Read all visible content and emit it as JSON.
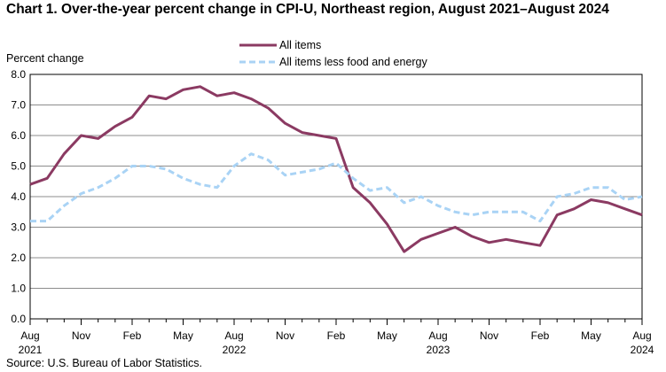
{
  "chart_data": {
    "type": "line",
    "title": "Chart 1. Over-the-year percent change in CPI-U, Northeast region, August 2021–August  2024",
    "ylabel": "Percent change",
    "xlabel": "",
    "ylim": [
      0,
      8
    ],
    "yticks": [
      "0.0",
      "1.0",
      "2.0",
      "3.0",
      "4.0",
      "5.0",
      "6.0",
      "7.0",
      "8.0"
    ],
    "grid": true,
    "legend_position": "top-center",
    "x_tick_labels": [
      {
        "index": 0,
        "month": "Aug",
        "year": "2021"
      },
      {
        "index": 3,
        "month": "Nov",
        "year": ""
      },
      {
        "index": 6,
        "month": "Feb",
        "year": ""
      },
      {
        "index": 9,
        "month": "May",
        "year": ""
      },
      {
        "index": 12,
        "month": "Aug",
        "year": "2022"
      },
      {
        "index": 15,
        "month": "Nov",
        "year": ""
      },
      {
        "index": 18,
        "month": "Feb",
        "year": ""
      },
      {
        "index": 21,
        "month": "May",
        "year": ""
      },
      {
        "index": 24,
        "month": "Aug",
        "year": "2023"
      },
      {
        "index": 27,
        "month": "Nov",
        "year": ""
      },
      {
        "index": 30,
        "month": "Feb",
        "year": ""
      },
      {
        "index": 33,
        "month": "May",
        "year": ""
      },
      {
        "index": 36,
        "month": "Aug",
        "year": "2024"
      }
    ],
    "series": [
      {
        "name": "All items",
        "color": "#8B3A62",
        "style": "solid",
        "values": [
          4.4,
          4.6,
          5.4,
          6.0,
          5.9,
          6.3,
          6.6,
          7.3,
          7.2,
          7.5,
          7.6,
          7.3,
          7.4,
          7.2,
          6.9,
          6.4,
          6.1,
          6.0,
          5.9,
          4.3,
          3.8,
          3.1,
          2.2,
          2.6,
          2.8,
          3.0,
          2.7,
          2.5,
          2.6,
          2.5,
          2.4,
          3.4,
          3.6,
          3.9,
          3.8,
          3.6,
          3.4
        ]
      },
      {
        "name": "All items less food and energy",
        "color": "#A9D3F5",
        "style": "dashed",
        "values": [
          3.2,
          3.2,
          3.7,
          4.1,
          4.3,
          4.6,
          5.0,
          5.0,
          4.9,
          4.6,
          4.4,
          4.3,
          5.0,
          5.4,
          5.2,
          4.7,
          4.8,
          4.9,
          5.1,
          4.6,
          4.2,
          4.3,
          3.8,
          4.0,
          3.7,
          3.5,
          3.4,
          3.5,
          3.5,
          3.5,
          3.2,
          4.0,
          4.1,
          4.3,
          4.3,
          3.9,
          4.0
        ]
      }
    ]
  },
  "source": "Source: U.S. Bureau  of Labor  Statistics."
}
